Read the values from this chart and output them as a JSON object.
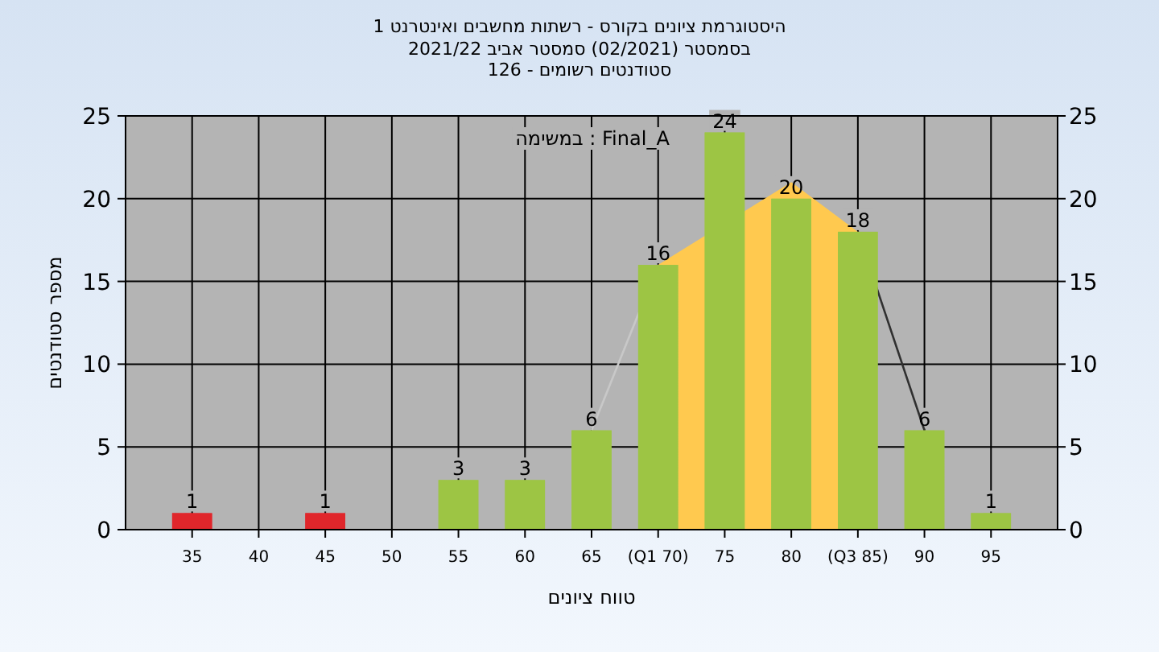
{
  "chart_data": {
    "type": "bar",
    "title": "היסטוגרמת ציונים בקורס - רשתות מחשבים ואינטרנט 1",
    "subtitle": "בסמסטר  (02/2021)  סמסטר אביב 2021/22\nסטודנטים רשומים - 126",
    "xlabel": "טווח ציונים",
    "ylabel": "מספר סטודנטים",
    "annotations": [
      "במשימה : Final_A"
    ],
    "xlim": [
      30,
      100
    ],
    "xticks": [
      35,
      40,
      45,
      50,
      55,
      60,
      65,
      {
        "value": 70,
        "label": "(Q1 70)"
      },
      75,
      80,
      {
        "value": 85,
        "label": "(Q3 85)"
      },
      90,
      95
    ],
    "ylim": [
      0,
      25
    ],
    "yticks": [
      0,
      5,
      10,
      15,
      20,
      25
    ],
    "y2lim": [
      0,
      25
    ],
    "y2ticks": [
      0,
      5,
      10,
      15,
      20,
      25
    ],
    "grid": true,
    "series": [
      {
        "type": "area",
        "x": [
          70,
          80,
          85
        ],
        "values": [
          16,
          21,
          18
        ],
        "color": "#ffc94f"
      },
      {
        "type": "line",
        "x": [
          65,
          70
        ],
        "values": [
          6,
          16
        ],
        "color": "#c8c8c8"
      },
      {
        "type": "line",
        "x": [
          85,
          90
        ],
        "values": [
          18,
          6
        ],
        "color": "#303030"
      },
      {
        "x": [
          35,
          45,
          55,
          60,
          65,
          70,
          75,
          80,
          85,
          90,
          95
        ],
        "values": [
          1,
          1,
          3,
          3,
          6,
          16,
          24,
          20,
          18,
          6,
          1
        ],
        "value_labels": [
          "1",
          "1",
          "3",
          "3",
          "6",
          "16",
          "24",
          "20",
          "18",
          "6",
          "1"
        ],
        "colors": [
          "#e0262b",
          "#e0262b",
          "#9dc544",
          "#9dc544",
          "#9dc544",
          "#9dc544",
          "#9dc544",
          "#9dc544",
          "#9dc544",
          "#9dc544",
          "#9dc544"
        ]
      }
    ]
  }
}
